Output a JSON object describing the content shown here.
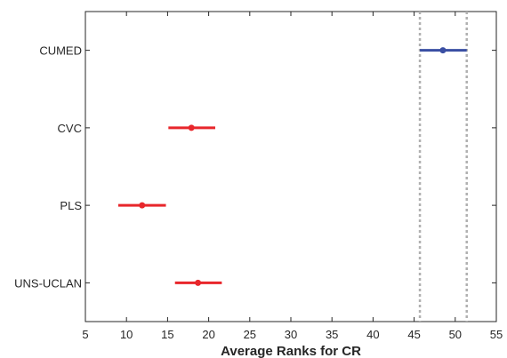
{
  "chart_data": {
    "type": "errorbar",
    "xlabel": "Average Ranks for CR",
    "xlim": [
      5,
      55
    ],
    "xticks": [
      5,
      10,
      15,
      20,
      25,
      30,
      35,
      40,
      45,
      50,
      55
    ],
    "categories": [
      "CUMED",
      "CVC",
      "PLS",
      "UNS-UCLAN"
    ],
    "series": [
      {
        "category": "CUMED",
        "mean": 48.5,
        "lower": 45.7,
        "upper": 51.4,
        "color": "#3a4fa3"
      },
      {
        "category": "CVC",
        "mean": 17.9,
        "lower": 15.1,
        "upper": 20.8,
        "color": "#e8262b"
      },
      {
        "category": "PLS",
        "mean": 11.9,
        "lower": 9.0,
        "upper": 14.8,
        "color": "#e8262b"
      },
      {
        "category": "UNS-UCLAN",
        "mean": 18.7,
        "lower": 15.9,
        "upper": 21.6,
        "color": "#e8262b"
      }
    ],
    "reference_lines": [
      45.7,
      51.4
    ],
    "reference_color": "#b0b0b0",
    "grid": false
  }
}
